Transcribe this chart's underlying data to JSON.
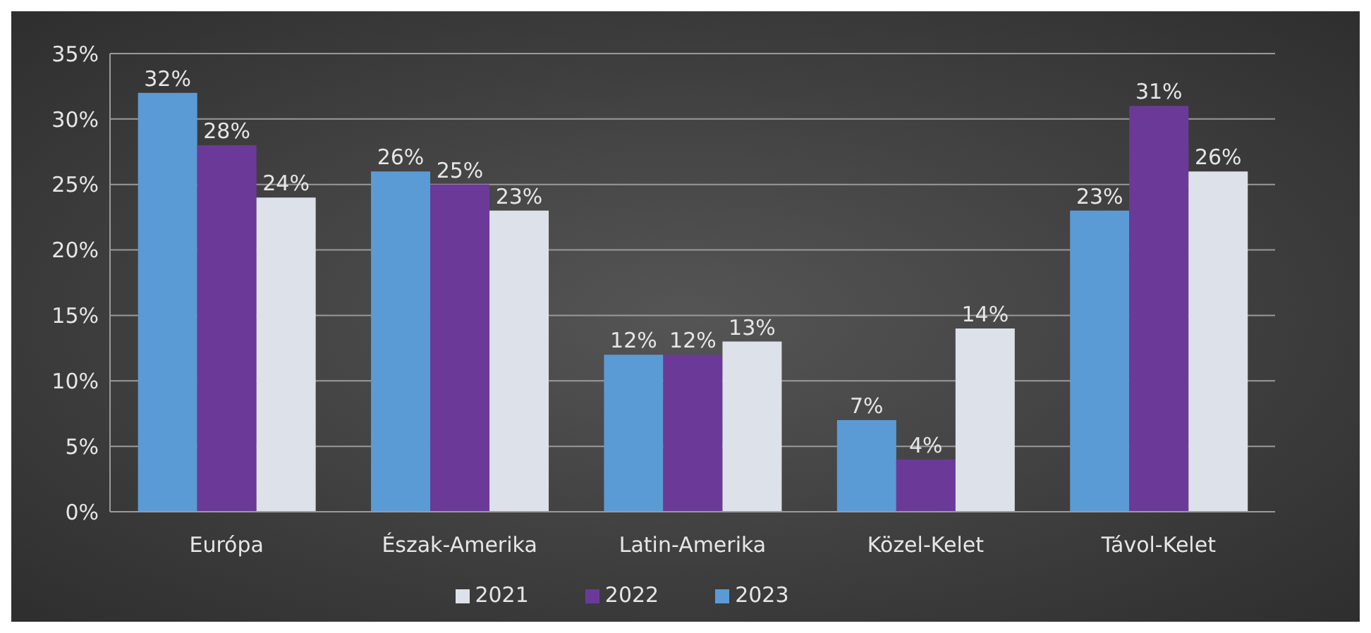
{
  "chart_data": {
    "type": "bar",
    "categories": [
      "Európa",
      "Észak-Amerika",
      "Latin-Amerika",
      "Közel-Kelet",
      "Távol-Kelet"
    ],
    "series": [
      {
        "name": "2023",
        "color": "#5b9bd5",
        "values": [
          32,
          26,
          12,
          7,
          23
        ],
        "value_labels": [
          "32%",
          "26%",
          "12%",
          "7%",
          "23%"
        ]
      },
      {
        "name": "2022",
        "color": "#6b3a99",
        "values": [
          28,
          25,
          12,
          4,
          31
        ],
        "value_labels": [
          "28%",
          "25%",
          "12%",
          "4%",
          "31%"
        ]
      },
      {
        "name": "2021",
        "color": "#dde1ea",
        "values": [
          24,
          23,
          13,
          14,
          26
        ],
        "value_labels": [
          "24%",
          "23%",
          "13%",
          "14%",
          "26%"
        ]
      }
    ],
    "ylim": [
      0,
      35
    ],
    "yticks": [
      {
        "value": 0,
        "label": "0%"
      },
      {
        "value": 5,
        "label": "5%"
      },
      {
        "value": 10,
        "label": "10%"
      },
      {
        "value": 15,
        "label": "15%"
      },
      {
        "value": 20,
        "label": "20%"
      },
      {
        "value": 25,
        "label": "25%"
      },
      {
        "value": 30,
        "label": "30%"
      },
      {
        "value": 35,
        "label": "35%"
      }
    ],
    "grid": "y",
    "legend": "bottom"
  }
}
